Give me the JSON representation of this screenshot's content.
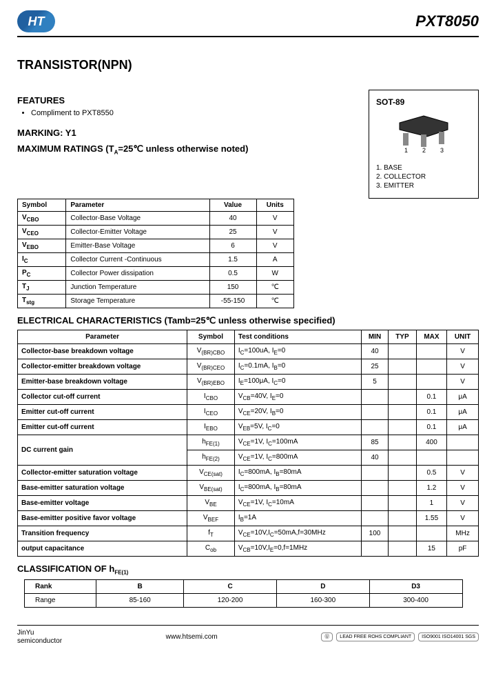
{
  "header": {
    "logo_text": "HT",
    "part_number": "PXT8050"
  },
  "title": "TRANSISTOR(NPN)",
  "features": {
    "heading": "FEATURES",
    "items": [
      "Compliment to PXT8550"
    ]
  },
  "marking": {
    "heading": "MARKING: Y1"
  },
  "package": {
    "name": "SOT-89",
    "pins": [
      "1. BASE",
      "2. COLLECTOR",
      "3. EMITTER"
    ]
  },
  "max_ratings": {
    "heading": "MAXIMUM RATINGS (T",
    "heading_sub": "A",
    "heading_rest": "=25℃ unless otherwise noted)",
    "cols": [
      "Symbol",
      "Parameter",
      "Value",
      "Units"
    ],
    "rows": [
      {
        "sym": "V",
        "sub": "CBO",
        "param": "Collector-Base Voltage",
        "val": "40",
        "unit": "V"
      },
      {
        "sym": "V",
        "sub": "CEO",
        "param": "Collector-Emitter Voltage",
        "val": "25",
        "unit": "V"
      },
      {
        "sym": "V",
        "sub": "EBO",
        "param": "Emitter-Base Voltage",
        "val": "6",
        "unit": "V"
      },
      {
        "sym": "I",
        "sub": "C",
        "param": "Collector Current -Continuous",
        "val": "1.5",
        "unit": "A"
      },
      {
        "sym": "P",
        "sub": "C",
        "param": "Collector Power dissipation",
        "val": "0.5",
        "unit": "W"
      },
      {
        "sym": "T",
        "sub": "J",
        "param": "Junction Temperature",
        "val": "150",
        "unit": "℃"
      },
      {
        "sym": "T",
        "sub": "stg",
        "param": "Storage Temperature",
        "val": "-55-150",
        "unit": "℃"
      }
    ]
  },
  "elec": {
    "heading": "ELECTRICAL CHARACTERISTICS (Tamb=25℃ unless otherwise specified)",
    "cols": [
      "Parameter",
      "Symbol",
      "Test    conditions",
      "MIN",
      "TYP",
      "MAX",
      "UNIT"
    ],
    "rows": [
      {
        "p": "Collector-base breakdown voltage",
        "s": "V",
        "sub": "(BR)CBO",
        "c": "I_C=100uA, I_E=0",
        "min": "40",
        "typ": "",
        "max": "",
        "u": "V"
      },
      {
        "p": "Collector-emitter breakdown voltage",
        "s": "V",
        "sub": "(BR)CEO",
        "c": "I_C=0.1mA, I_B=0",
        "min": "25",
        "typ": "",
        "max": "",
        "u": "V"
      },
      {
        "p": "Emitter-base breakdown voltage",
        "s": "V",
        "sub": "(BR)EBO",
        "c": "I_E=100μA, I_C=0",
        "min": "5",
        "typ": "",
        "max": "",
        "u": "V"
      },
      {
        "p": "Collector cut-off current",
        "s": "I",
        "sub": "CBO",
        "c": "V_CB=40V, I_E=0",
        "min": "",
        "typ": "",
        "max": "0.1",
        "u": "μA"
      },
      {
        "p": "Emitter cut-off current",
        "s": "I",
        "sub": "CEO",
        "c": "V_CE=20V, I_B=0",
        "min": "",
        "typ": "",
        "max": "0.1",
        "u": "μA"
      },
      {
        "p": "Emitter cut-off current",
        "s": "I",
        "sub": "EBO",
        "c": "V_EB=5V, I_C=0",
        "min": "",
        "typ": "",
        "max": "0.1",
        "u": "μA"
      },
      {
        "p": "DC current gain",
        "s": "h",
        "sub": "FE(1)",
        "c": "V_CE=1V, I_C=100mA",
        "min": "85",
        "typ": "",
        "max": "400",
        "u": "",
        "rowspan": 2
      },
      {
        "p": "",
        "s": "h",
        "sub": "FE(2)",
        "c": "V_CE=1V, I_C=800mA",
        "min": "40",
        "typ": "",
        "max": "",
        "u": ""
      },
      {
        "p": "Collector-emitter saturation voltage",
        "s": "V",
        "sub": "CE(sat)",
        "c": "I_C=800mA, I_B=80mA",
        "min": "",
        "typ": "",
        "max": "0.5",
        "u": "V"
      },
      {
        "p": "Base-emitter saturation voltage",
        "s": "V",
        "sub": "BE(sat)",
        "c": "I_C=800mA, I_B=80mA",
        "min": "",
        "typ": "",
        "max": "1.2",
        "u": "V"
      },
      {
        "p": "Base-emitter voltage",
        "s": "V",
        "sub": "BE",
        "c": "V_CE=1V, I_C=10mA",
        "min": "",
        "typ": "",
        "max": "1",
        "u": "V"
      },
      {
        "p": "Base-emitter positive favor voltage",
        "s": "V",
        "sub": "BEF",
        "c": "I_B=1A",
        "min": "",
        "typ": "",
        "max": "1.55",
        "u": "V"
      },
      {
        "p": "Transition frequency",
        "s": "f",
        "sub": "T",
        "c": "V_CE=10V,I_C=50mA,f=30MHz",
        "min": "100",
        "typ": "",
        "max": "",
        "u": "MHz"
      },
      {
        "p": "output capacitance",
        "s": "C",
        "sub": "ob",
        "c": "V_CB=10V,I_E=0,f=1MHz",
        "min": "",
        "typ": "",
        "max": "15",
        "u": "pF"
      }
    ]
  },
  "classification": {
    "heading": "CLASSIFICATION OF h",
    "heading_sub": "FE(1)",
    "cols": [
      "Rank",
      "B",
      "C",
      "D",
      "D3"
    ],
    "rows": [
      {
        "label": "Range",
        "vals": [
          "85-160",
          "120-200",
          "160-300",
          "300-400"
        ]
      }
    ]
  },
  "footer": {
    "company1": "JinYu",
    "company2": "semiconductor",
    "url": "www.htsemi.com",
    "badges": [
      "UL",
      "LEAD FREE\nROHS\nCOMPLIANT",
      "ISO9001 ISO14001\nSGS"
    ]
  }
}
